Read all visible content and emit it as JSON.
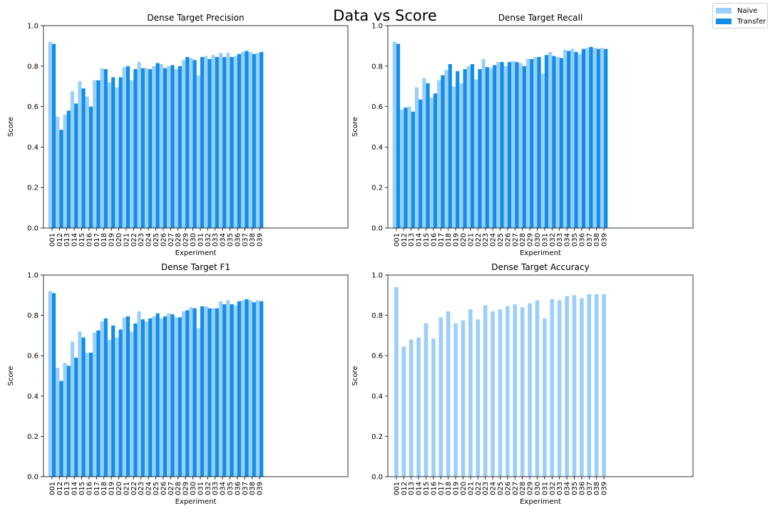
{
  "figure": {
    "title": "Data vs Score",
    "legend": [
      {
        "label": "Naive",
        "color": "#9bcffa"
      },
      {
        "label": "Transfer",
        "color": "#128fe5"
      }
    ]
  },
  "chart_data": [
    {
      "type": "bar",
      "title": "Dense Target Precision",
      "xlabel": "Experiment",
      "ylabel": "Score",
      "ylim": [
        0,
        1.0
      ],
      "yticks": [
        "0.0",
        "0.2",
        "0.4",
        "0.6",
        "0.8",
        "1.0"
      ],
      "categories": [
        "001",
        "012",
        "013",
        "014",
        "015",
        "016",
        "017",
        "018",
        "019",
        "020",
        "021",
        "022",
        "023",
        "024",
        "025",
        "026",
        "027",
        "028",
        "029",
        "030",
        "031",
        "032",
        "033",
        "034",
        "035",
        "036",
        "037",
        "038",
        "039"
      ],
      "series": [
        {
          "name": "Naive",
          "color": "#9bcffa",
          "values": [
            0.92,
            0.55,
            0.56,
            0.675,
            0.725,
            0.65,
            0.73,
            0.79,
            0.72,
            0.695,
            0.795,
            0.73,
            0.82,
            0.79,
            0.8,
            0.81,
            0.8,
            0.785,
            0.83,
            0.84,
            0.755,
            0.85,
            0.855,
            0.865,
            0.865,
            0.85,
            0.87,
            0.87,
            0.865
          ]
        },
        {
          "name": "Transfer",
          "color": "#128fe5",
          "values": [
            0.91,
            0.485,
            0.58,
            0.615,
            0.69,
            0.6,
            0.73,
            0.785,
            0.745,
            0.745,
            0.8,
            0.785,
            0.79,
            0.785,
            0.815,
            0.79,
            0.805,
            0.8,
            0.845,
            0.83,
            0.845,
            0.835,
            0.845,
            0.845,
            0.845,
            0.86,
            0.875,
            0.86,
            0.87
          ]
        }
      ]
    },
    {
      "type": "bar",
      "title": "Dense Target Recall",
      "xlabel": "Experiment",
      "ylabel": "Score",
      "ylim": [
        0,
        1.0
      ],
      "yticks": [
        "0.0",
        "0.2",
        "0.4",
        "0.6",
        "0.8",
        "1.0"
      ],
      "categories": [
        "001",
        "012",
        "013",
        "014",
        "015",
        "016",
        "017",
        "018",
        "019",
        "020",
        "021",
        "022",
        "023",
        "024",
        "025",
        "026",
        "027",
        "028",
        "029",
        "030",
        "031",
        "032",
        "033",
        "034",
        "035",
        "036",
        "037",
        "038",
        "039"
      ],
      "series": [
        {
          "name": "Naive",
          "color": "#9bcffa",
          "values": [
            0.92,
            0.585,
            0.6,
            0.695,
            0.74,
            0.645,
            0.73,
            0.78,
            0.7,
            0.715,
            0.8,
            0.735,
            0.835,
            0.79,
            0.82,
            0.8,
            0.825,
            0.815,
            0.835,
            0.845,
            0.765,
            0.87,
            0.845,
            0.88,
            0.885,
            0.86,
            0.89,
            0.89,
            0.89
          ]
        },
        {
          "name": "Transfer",
          "color": "#128fe5",
          "values": [
            0.91,
            0.595,
            0.575,
            0.635,
            0.715,
            0.665,
            0.755,
            0.81,
            0.775,
            0.785,
            0.81,
            0.785,
            0.795,
            0.805,
            0.82,
            0.82,
            0.82,
            0.8,
            0.835,
            0.845,
            0.855,
            0.85,
            0.84,
            0.875,
            0.87,
            0.885,
            0.895,
            0.885,
            0.885
          ]
        }
      ]
    },
    {
      "type": "bar",
      "title": "Dense Target F1",
      "xlabel": "Experiment",
      "ylabel": "Score",
      "ylim": [
        0,
        1.0
      ],
      "yticks": [
        "0.0",
        "0.2",
        "0.4",
        "0.6",
        "0.8",
        "1.0"
      ],
      "categories": [
        "001",
        "012",
        "013",
        "014",
        "015",
        "016",
        "017",
        "018",
        "019",
        "020",
        "021",
        "022",
        "023",
        "024",
        "025",
        "026",
        "027",
        "028",
        "029",
        "030",
        "031",
        "032",
        "033",
        "034",
        "035",
        "036",
        "037",
        "038",
        "039"
      ],
      "series": [
        {
          "name": "Naive",
          "color": "#9bcffa",
          "values": [
            0.92,
            0.54,
            0.565,
            0.67,
            0.72,
            0.615,
            0.715,
            0.77,
            0.68,
            0.69,
            0.79,
            0.72,
            0.82,
            0.77,
            0.795,
            0.785,
            0.81,
            0.79,
            0.82,
            0.84,
            0.735,
            0.845,
            0.835,
            0.87,
            0.875,
            0.85,
            0.875,
            0.875,
            0.875
          ]
        },
        {
          "name": "Transfer",
          "color": "#128fe5",
          "values": [
            0.91,
            0.475,
            0.55,
            0.59,
            0.69,
            0.615,
            0.725,
            0.785,
            0.75,
            0.73,
            0.795,
            0.76,
            0.78,
            0.785,
            0.81,
            0.795,
            0.805,
            0.79,
            0.825,
            0.835,
            0.845,
            0.835,
            0.835,
            0.855,
            0.855,
            0.87,
            0.88,
            0.865,
            0.87
          ]
        }
      ]
    },
    {
      "type": "bar",
      "title": "Dense Target Accuracy",
      "xlabel": "Experiment",
      "ylabel": "Score",
      "ylim": [
        0,
        1.0
      ],
      "yticks": [
        "0.0",
        "0.2",
        "0.4",
        "0.6",
        "0.8",
        "1.0"
      ],
      "categories": [
        "001",
        "012",
        "013",
        "014",
        "015",
        "016",
        "017",
        "018",
        "019",
        "020",
        "021",
        "022",
        "023",
        "024",
        "025",
        "026",
        "027",
        "028",
        "029",
        "030",
        "031",
        "032",
        "033",
        "034",
        "035",
        "036",
        "037",
        "038",
        "039"
      ],
      "series": [
        {
          "name": "Naive",
          "color": "#9bcffa",
          "values": [
            0.94,
            0.645,
            0.68,
            0.69,
            0.76,
            0.685,
            0.79,
            0.82,
            0.76,
            0.775,
            0.83,
            0.78,
            0.85,
            0.82,
            0.83,
            0.845,
            0.855,
            0.84,
            0.86,
            0.875,
            0.785,
            0.88,
            0.875,
            0.895,
            0.9,
            0.885,
            0.905,
            0.905,
            0.905
          ]
        }
      ]
    }
  ]
}
